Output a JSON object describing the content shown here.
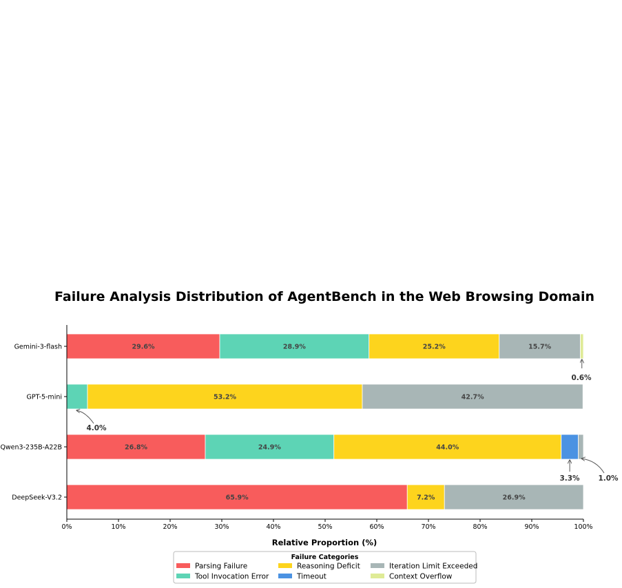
{
  "chart_data": {
    "type": "bar",
    "orientation": "horizontal",
    "stacked": true,
    "title": "Failure Analysis Distribution of AgentBench in the Web Browsing Domain",
    "xlabel": "Relative Proportion (%)",
    "ylabel": "",
    "xlim": [
      0,
      100
    ],
    "xticks": [
      "0%",
      "10%",
      "20%",
      "30%",
      "40%",
      "50%",
      "60%",
      "70%",
      "80%",
      "90%",
      "100%"
    ],
    "categories": [
      "Gemini-3-flash",
      "GPT-5-mini",
      "Qwen3-235B-A22B",
      "DeepSeek-V3.2"
    ],
    "series": [
      {
        "name": "Parsing Failure",
        "color": "#f85c5c",
        "values": [
          29.6,
          0,
          26.8,
          65.9
        ],
        "labels": [
          "29.6%",
          "",
          "26.8%",
          "65.9%"
        ]
      },
      {
        "name": "Tool Invocation Error",
        "color": "#5dd4b5",
        "values": [
          28.9,
          4.0,
          24.9,
          0
        ],
        "labels": [
          "28.9%",
          "",
          "24.9%",
          ""
        ]
      },
      {
        "name": "Reasoning Deficit",
        "color": "#fdd41d",
        "values": [
          25.2,
          53.2,
          44.0,
          7.2
        ],
        "labels": [
          "25.2%",
          "53.2%",
          "44.0%",
          "7.2%"
        ]
      },
      {
        "name": "Timeout",
        "color": "#4b92e2",
        "values": [
          0,
          0,
          3.3,
          0
        ],
        "labels": [
          "",
          "",
          "",
          ""
        ]
      },
      {
        "name": "Iteration Limit Exceeded",
        "color": "#a8b6b6",
        "values": [
          15.7,
          42.7,
          1.0,
          26.9
        ],
        "labels": [
          "15.7%",
          "42.7%",
          "",
          "26.9%"
        ]
      },
      {
        "name": "Context Overflow",
        "color": "#dfeb96",
        "values": [
          0.6,
          0,
          0,
          0
        ],
        "labels": [
          "",
          "",
          "",
          ""
        ]
      }
    ],
    "annotations": [
      {
        "text": "0.6%",
        "category": 0,
        "series": 5
      },
      {
        "text": "4.0%",
        "category": 1,
        "series": 1
      },
      {
        "text": "3.3%",
        "category": 2,
        "series": 3
      },
      {
        "text": "1.0%",
        "category": 2,
        "series": 4
      }
    ],
    "legend": {
      "title": "Failure Categories",
      "position": "bottom-center"
    },
    "grid": false
  }
}
